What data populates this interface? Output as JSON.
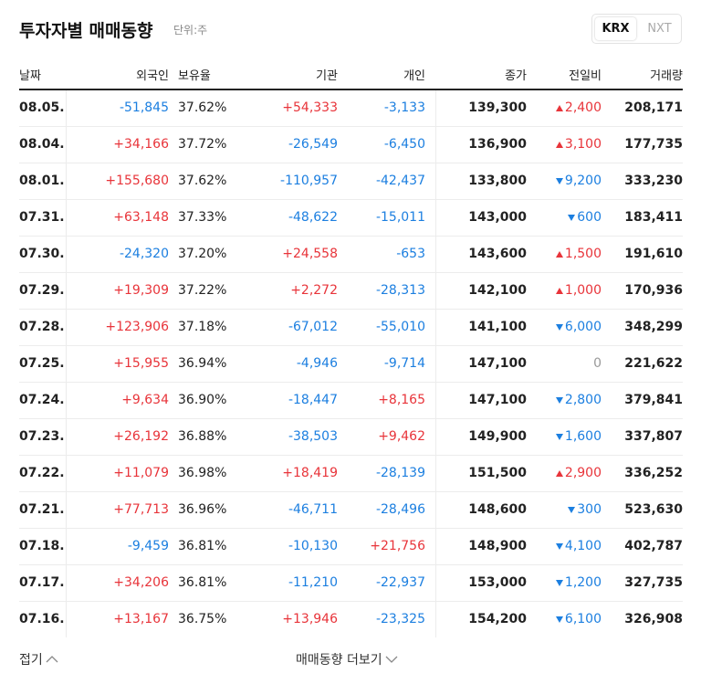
{
  "header": {
    "title": "투자자별 매매동향",
    "unit": "단위:주",
    "tabs": [
      "KRX",
      "NXT"
    ],
    "active_tab": 0
  },
  "table": {
    "columns": [
      "날짜",
      "외국인",
      "보유율",
      "기관",
      "개인",
      "종가",
      "전일비",
      "거래량"
    ],
    "rows": [
      [
        "08.05.",
        "-51,845",
        "37.62%",
        "+54,333",
        "-3,133",
        "139,300",
        "2,400",
        "208,171"
      ],
      [
        "08.04.",
        "+34,166",
        "37.72%",
        "-26,549",
        "-6,450",
        "136,900",
        "3,100",
        "177,735"
      ],
      [
        "08.01.",
        "+155,680",
        "37.62%",
        "-110,957",
        "-42,437",
        "133,800",
        "9,200",
        "333,230"
      ],
      [
        "07.31.",
        "+63,148",
        "37.33%",
        "-48,622",
        "-15,011",
        "143,000",
        "600",
        "183,411"
      ],
      [
        "07.30.",
        "-24,320",
        "37.20%",
        "+24,558",
        "-653",
        "143,600",
        "1,500",
        "191,610"
      ],
      [
        "07.29.",
        "+19,309",
        "37.22%",
        "+2,272",
        "-28,313",
        "142,100",
        "1,000",
        "170,936"
      ],
      [
        "07.28.",
        "+123,906",
        "37.18%",
        "-67,012",
        "-55,010",
        "141,100",
        "6,000",
        "348,299"
      ],
      [
        "07.25.",
        "+15,955",
        "36.94%",
        "-4,946",
        "-9,714",
        "147,100",
        "0",
        "221,622"
      ],
      [
        "07.24.",
        "+9,634",
        "36.90%",
        "-18,447",
        "+8,165",
        "147,100",
        "2,800",
        "379,841"
      ],
      [
        "07.23.",
        "+26,192",
        "36.88%",
        "-38,503",
        "+9,462",
        "149,900",
        "1,600",
        "337,807"
      ],
      [
        "07.22.",
        "+11,079",
        "36.98%",
        "+18,419",
        "-28,139",
        "151,500",
        "2,900",
        "336,252"
      ],
      [
        "07.21.",
        "+77,713",
        "36.96%",
        "-46,711",
        "-28,496",
        "148,600",
        "300",
        "523,630"
      ],
      [
        "07.18.",
        "-9,459",
        "36.81%",
        "-10,130",
        "+21,756",
        "148,900",
        "4,100",
        "402,787"
      ],
      [
        "07.17.",
        "+34,206",
        "36.81%",
        "-11,210",
        "-22,937",
        "153,000",
        "1,200",
        "327,735"
      ],
      [
        "07.16.",
        "+13,167",
        "36.75%",
        "+13,946",
        "-23,325",
        "154,200",
        "6,100",
        "326,908"
      ]
    ],
    "change_directions": [
      "up",
      "up",
      "down",
      "down",
      "up",
      "up",
      "down",
      "none",
      "down",
      "down",
      "up",
      "down",
      "down",
      "down",
      "down"
    ]
  },
  "footer": {
    "collapse": "접기",
    "more": "매매동향 더보기"
  }
}
